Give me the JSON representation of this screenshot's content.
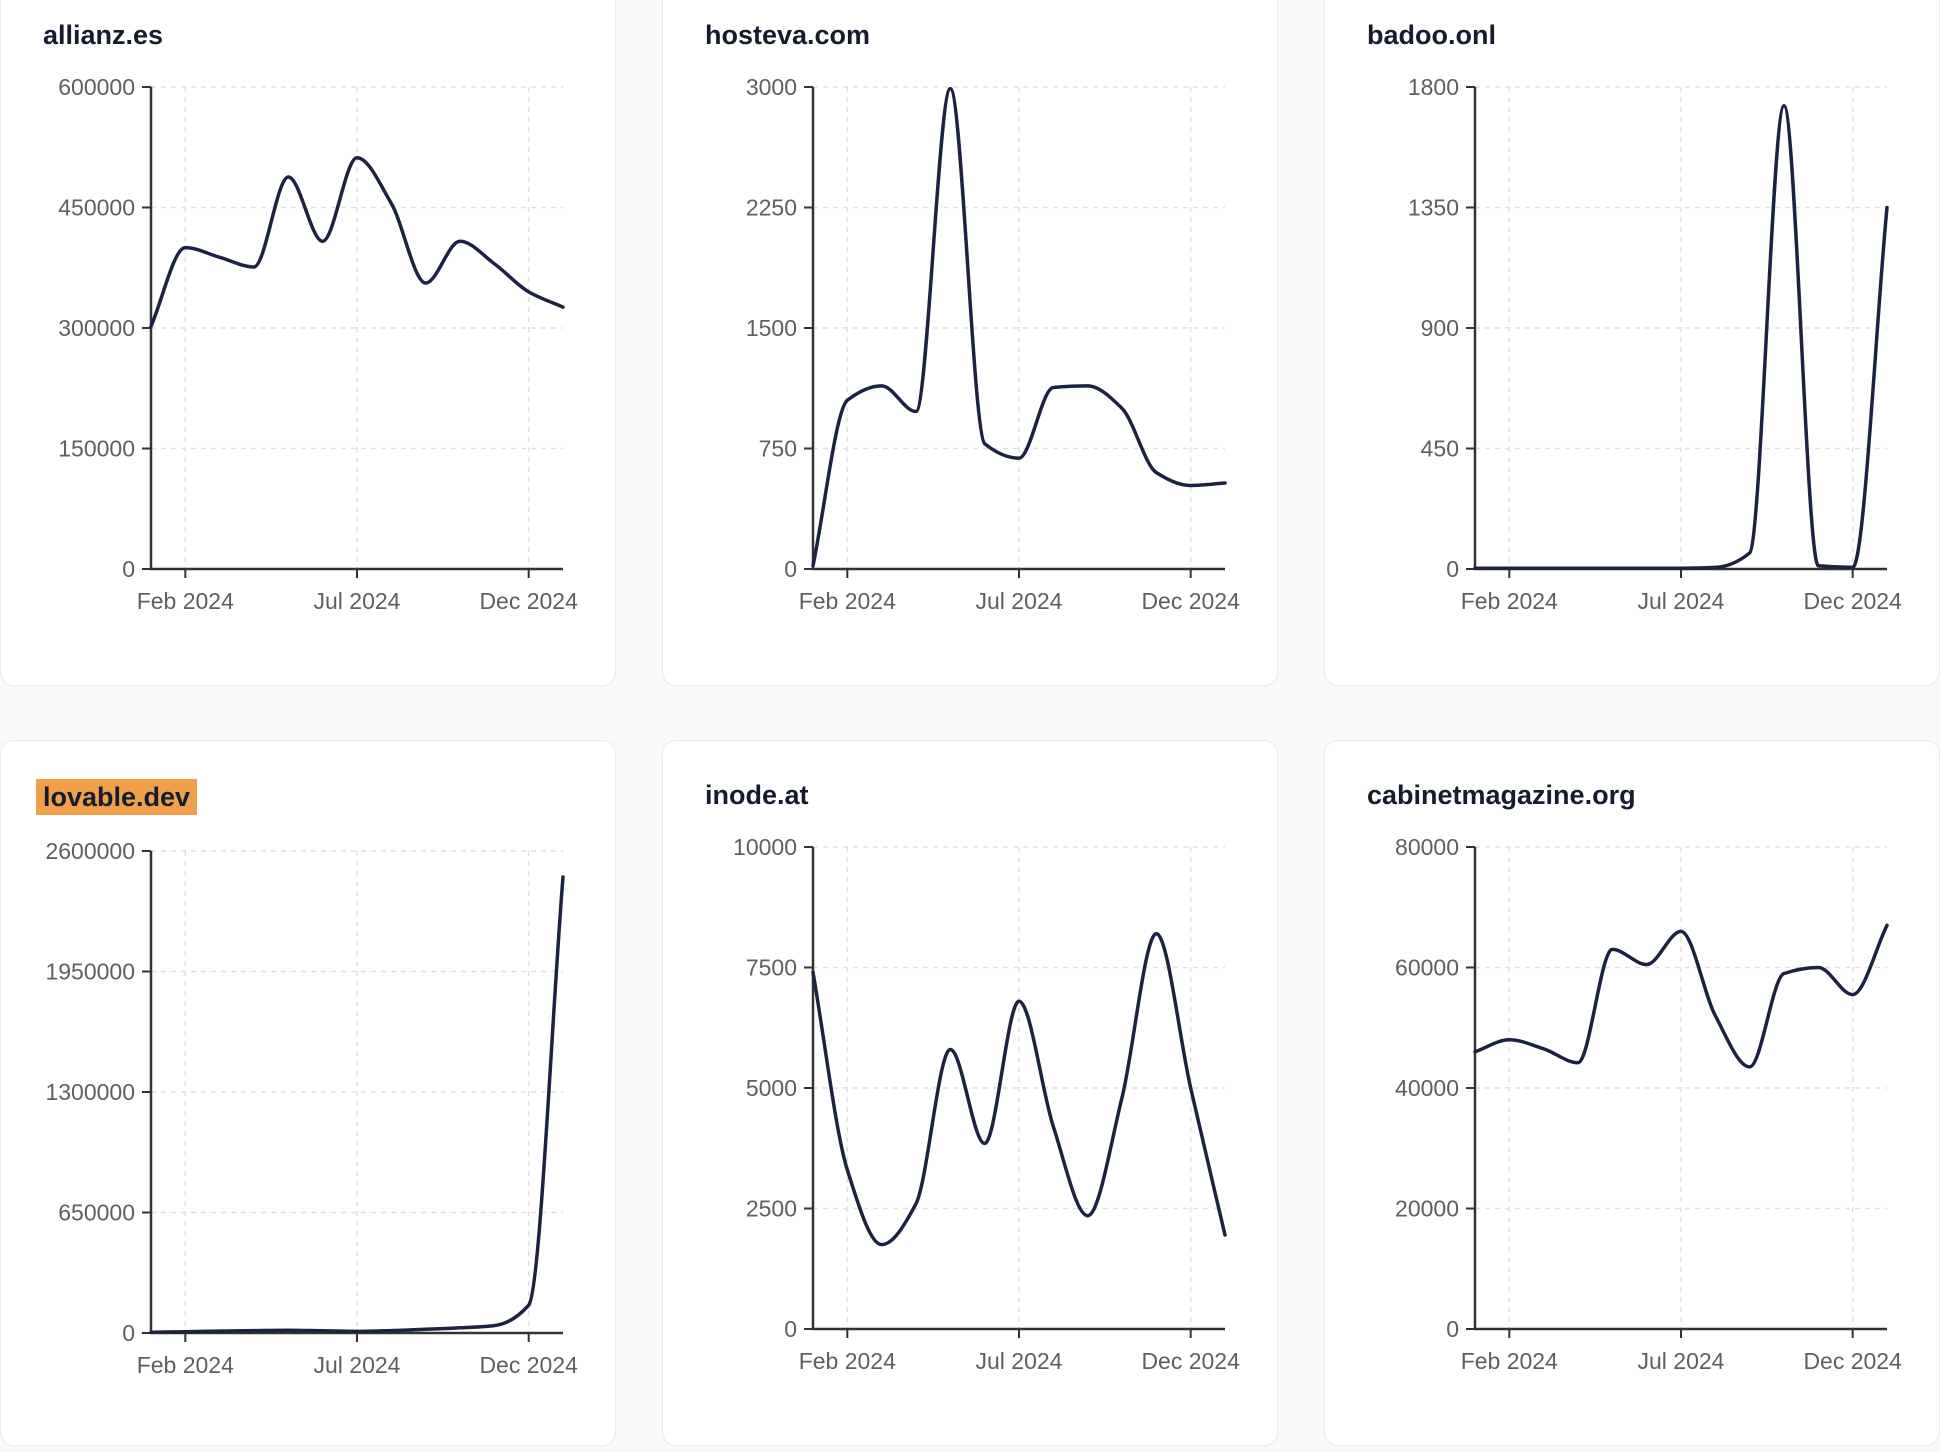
{
  "style": {
    "page_bg": "#fafafa",
    "card_bg": "#ffffff",
    "card_border": "#ebebeb",
    "title_color": "#151c2e",
    "highlight_color": "#f0a04a",
    "line_color": "#1b2340",
    "axis_color": "#333333",
    "grid_color": "#e0e0e0",
    "tick_label_color": "#5f5f5f"
  },
  "chart_data": [
    {
      "type": "line",
      "title": "allianz.es",
      "highlighted": false,
      "x": [
        "Jan 2024",
        "Feb 2024",
        "Mar 2024",
        "Apr 2024",
        "May 2024",
        "Jun 2024",
        "Jul 2024",
        "Aug 2024",
        "Sep 2024",
        "Oct 2024",
        "Nov 2024",
        "Dec 2024",
        "Late Dec 2024"
      ],
      "values": [
        302000,
        400000,
        388000,
        376000,
        488000,
        408000,
        512000,
        455000,
        356000,
        408000,
        380000,
        345000,
        326000
      ],
      "y_ticks": [
        0,
        150000,
        300000,
        450000,
        600000
      ],
      "ylim": [
        0,
        600000
      ],
      "x_tick_labels": [
        "Feb 2024",
        "Jul 2024",
        "Dec 2024"
      ],
      "x_tick_pos": [
        0.0833,
        0.5,
        0.9167
      ]
    },
    {
      "type": "line",
      "title": "hosteva.com",
      "highlighted": false,
      "x": [
        "Jan 2024",
        "Feb 2024",
        "Mar 2024",
        "Apr 2024",
        "May 2024",
        "Jun 2024",
        "Jul 2024",
        "Aug 2024",
        "Sep 2024",
        "Oct 2024",
        "Nov 2024",
        "Dec 2024",
        "Late Dec 2024"
      ],
      "values": [
        20,
        1050,
        1140,
        980,
        2990,
        780,
        690,
        1130,
        1140,
        1000,
        600,
        520,
        535
      ],
      "y_ticks": [
        0,
        750,
        1500,
        2250,
        3000
      ],
      "ylim": [
        0,
        3000
      ],
      "x_tick_labels": [
        "Feb 2024",
        "Jul 2024",
        "Dec 2024"
      ],
      "x_tick_pos": [
        0.0833,
        0.5,
        0.9167
      ]
    },
    {
      "type": "line",
      "title": "badoo.onl",
      "highlighted": false,
      "x": [
        "Jan 2024",
        "Feb 2024",
        "Mar 2024",
        "Apr 2024",
        "May 2024",
        "Jun 2024",
        "Jul 2024",
        "Aug 2024",
        "Sep 2024",
        "Oct 2024",
        "Nov 2024",
        "Dec 2024",
        "Late Dec 2024"
      ],
      "values": [
        3,
        3,
        3,
        3,
        3,
        3,
        3,
        6,
        60,
        1730,
        12,
        6,
        1350
      ],
      "y_ticks": [
        0,
        450,
        900,
        1350,
        1800
      ],
      "ylim": [
        0,
        1800
      ],
      "x_tick_labels": [
        "Feb 2024",
        "Jul 2024",
        "Dec 2024"
      ],
      "x_tick_pos": [
        0.0833,
        0.5,
        0.9167
      ]
    },
    {
      "type": "line",
      "title": "lovable.dev",
      "highlighted": true,
      "x": [
        "Jan 2024",
        "Feb 2024",
        "Mar 2024",
        "Apr 2024",
        "May 2024",
        "Jun 2024",
        "Jul 2024",
        "Aug 2024",
        "Sep 2024",
        "Oct 2024",
        "Nov 2024",
        "Dec 2024",
        "Late Dec 2024"
      ],
      "values": [
        4000,
        7000,
        10000,
        13000,
        15000,
        12000,
        9000,
        13000,
        20000,
        28000,
        40000,
        150000,
        2460000
      ],
      "y_ticks": [
        0,
        650000,
        1300000,
        1950000,
        2600000
      ],
      "ylim": [
        0,
        2600000
      ],
      "x_tick_labels": [
        "Feb 2024",
        "Jul 2024",
        "Dec 2024"
      ],
      "x_tick_pos": [
        0.0833,
        0.5,
        0.9167
      ]
    },
    {
      "type": "line",
      "title": "inode.at",
      "highlighted": false,
      "x": [
        "Jan 2024",
        "Feb 2024",
        "Mar 2024",
        "Apr 2024",
        "May 2024",
        "Jun 2024",
        "Jul 2024",
        "Aug 2024",
        "Sep 2024",
        "Oct 2024",
        "Nov 2024",
        "Dec 2024",
        "Late Dec 2024"
      ],
      "values": [
        7400,
        3300,
        1750,
        2600,
        5800,
        3850,
        6800,
        4200,
        2350,
        4800,
        8200,
        5000,
        1950
      ],
      "y_ticks": [
        0,
        2500,
        5000,
        7500,
        10000
      ],
      "ylim": [
        0,
        10000
      ],
      "x_tick_labels": [
        "Feb 2024",
        "Jul 2024",
        "Dec 2024"
      ],
      "x_tick_pos": [
        0.0833,
        0.5,
        0.9167
      ]
    },
    {
      "type": "line",
      "title": "cabinetmagazine.org",
      "highlighted": false,
      "x": [
        "Jan 2024",
        "Feb 2024",
        "Mar 2024",
        "Apr 2024",
        "May 2024",
        "Jun 2024",
        "Jul 2024",
        "Aug 2024",
        "Sep 2024",
        "Oct 2024",
        "Nov 2024",
        "Dec 2024",
        "Late Dec 2024"
      ],
      "values": [
        46000,
        48000,
        46500,
        44200,
        63000,
        60500,
        66000,
        52000,
        43500,
        59000,
        60000,
        55500,
        67000
      ],
      "y_ticks": [
        0,
        20000,
        40000,
        60000,
        80000
      ],
      "ylim": [
        0,
        80000
      ],
      "x_tick_labels": [
        "Feb 2024",
        "Jul 2024",
        "Dec 2024"
      ],
      "x_tick_pos": [
        0.0833,
        0.5,
        0.9167
      ]
    }
  ]
}
